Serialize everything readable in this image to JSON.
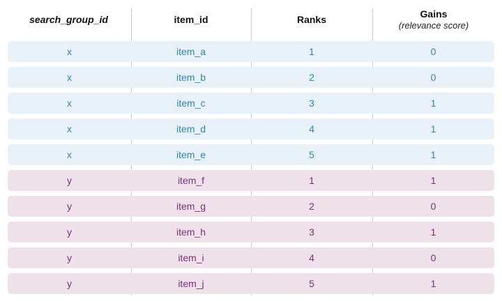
{
  "header": {
    "col1": "search_group_id",
    "col2": "item_id",
    "col3": "Ranks",
    "col4": "Gains",
    "col4_sub": "(relevance score)"
  },
  "rows": [
    {
      "group": "x",
      "item_id": "item_a",
      "rank": "1",
      "gain": "0"
    },
    {
      "group": "x",
      "item_id": "item_b",
      "rank": "2",
      "gain": "0"
    },
    {
      "group": "x",
      "item_id": "item_c",
      "rank": "3",
      "gain": "1"
    },
    {
      "group": "x",
      "item_id": "item_d",
      "rank": "4",
      "gain": "1"
    },
    {
      "group": "x",
      "item_id": "item_e",
      "rank": "5",
      "gain": "1"
    },
    {
      "group": "y",
      "item_id": "item_f",
      "rank": "1",
      "gain": "1"
    },
    {
      "group": "y",
      "item_id": "item_g",
      "rank": "2",
      "gain": "0"
    },
    {
      "group": "y",
      "item_id": "item_h",
      "rank": "3",
      "gain": "1"
    },
    {
      "group": "y",
      "item_id": "item_i",
      "rank": "4",
      "gain": "0"
    },
    {
      "group": "y",
      "item_id": "item_j",
      "rank": "5",
      "gain": "1"
    }
  ],
  "colors": {
    "group_x_background": "#e8f1f7",
    "group_x_text": "#2d86b0",
    "group_y_background": "#eee1ea",
    "group_y_text": "#7b2f7a"
  }
}
